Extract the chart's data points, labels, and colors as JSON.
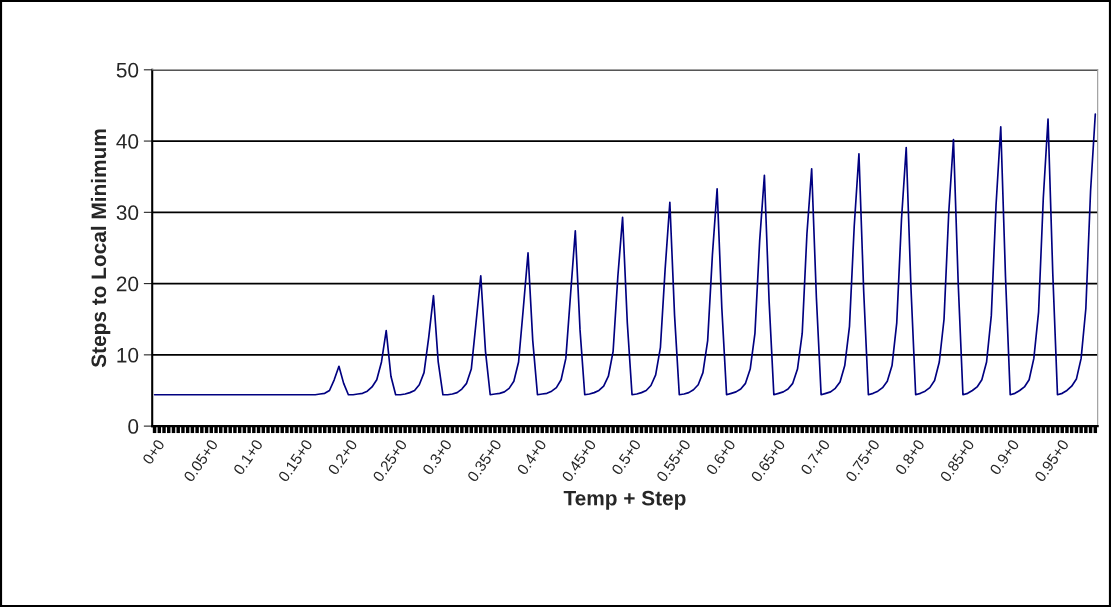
{
  "chart_data": {
    "type": "line",
    "xlabel": "Temp + Step",
    "ylabel": "Steps to Local Minimum",
    "ylim": [
      0,
      50
    ],
    "yticks": [
      0,
      10,
      20,
      30,
      40,
      50
    ],
    "grid": "y",
    "marker": "none",
    "line_style": "solid",
    "categories": [
      "0+0",
      null,
      null,
      null,
      null,
      null,
      null,
      null,
      null,
      null,
      "0.05+0",
      null,
      null,
      null,
      null,
      null,
      null,
      null,
      null,
      null,
      "0.1+0",
      null,
      null,
      null,
      null,
      null,
      null,
      null,
      null,
      null,
      "0.15+0",
      null,
      null,
      null,
      null,
      null,
      null,
      null,
      null,
      null,
      "0.2+0",
      null,
      null,
      null,
      null,
      null,
      null,
      null,
      null,
      null,
      "0.25+0",
      null,
      null,
      null,
      null,
      null,
      null,
      null,
      null,
      null,
      "0.3+0",
      null,
      null,
      null,
      null,
      null,
      null,
      null,
      null,
      null,
      "0.35+0",
      null,
      null,
      null,
      null,
      null,
      null,
      null,
      null,
      null,
      "0.4+0",
      null,
      null,
      null,
      null,
      null,
      null,
      null,
      null,
      null,
      "0.45+0",
      null,
      null,
      null,
      null,
      null,
      null,
      null,
      null,
      null,
      "0.5+0",
      null,
      null,
      null,
      null,
      null,
      null,
      null,
      null,
      null,
      "0.55+0",
      null,
      null,
      null,
      null,
      null,
      null,
      null,
      null,
      null,
      "0.6+0",
      null,
      null,
      null,
      null,
      null,
      null,
      null,
      null,
      null,
      "0.65+0",
      null,
      null,
      null,
      null,
      null,
      null,
      null,
      null,
      null,
      "0.7+0",
      null,
      null,
      null,
      null,
      null,
      null,
      null,
      null,
      null,
      "0.75+0",
      null,
      null,
      null,
      null,
      null,
      null,
      null,
      null,
      null,
      "0.8+0",
      null,
      null,
      null,
      null,
      null,
      null,
      null,
      null,
      null,
      "0.85+0",
      null,
      null,
      null,
      null,
      null,
      null,
      null,
      null,
      null,
      "0.9+0",
      null,
      null,
      null,
      null,
      null,
      null,
      null,
      null,
      null,
      "0.95+0",
      null,
      null,
      null,
      null,
      null,
      null,
      null,
      null,
      null
    ],
    "series": [
      {
        "color": "#000080",
        "values": [
          4.4,
          4.4,
          4.4,
          4.4,
          4.4,
          4.4,
          4.4,
          4.4,
          4.4,
          4.4,
          4.4,
          4.4,
          4.4,
          4.4,
          4.4,
          4.4,
          4.4,
          4.4,
          4.4,
          4.4,
          4.4,
          4.4,
          4.4,
          4.4,
          4.4,
          4.4,
          4.4,
          4.4,
          4.4,
          4.4,
          4.4,
          4.4,
          4.4,
          4.4,
          4.4,
          4.5,
          4.6,
          5,
          6.5,
          8.4,
          6,
          4.4,
          4.4,
          4.5,
          4.6,
          4.9,
          5.5,
          6.5,
          9,
          13.4,
          7,
          4.4,
          4.4,
          4.5,
          4.7,
          5,
          5.8,
          7.5,
          12.5,
          18.3,
          9,
          4.4,
          4.4,
          4.5,
          4.7,
          5.2,
          6,
          8,
          14.5,
          21.1,
          10.5,
          4.4,
          4.5,
          4.6,
          4.8,
          5.3,
          6.3,
          9,
          16.5,
          24.3,
          12,
          4.4,
          4.5,
          4.6,
          4.9,
          5.4,
          6.5,
          9.5,
          18.5,
          27.4,
          13.5,
          4.4,
          4.5,
          4.7,
          5,
          5.6,
          7,
          10.5,
          21,
          29.3,
          14.5,
          4.4,
          4.5,
          4.7,
          5,
          5.7,
          7.2,
          11,
          22,
          31.4,
          15.5,
          4.4,
          4.5,
          4.7,
          5.1,
          5.8,
          7.5,
          12,
          24,
          33.3,
          16.5,
          4.4,
          4.6,
          4.8,
          5.2,
          6,
          8,
          13,
          26,
          35.2,
          17.5,
          4.4,
          4.6,
          4.8,
          5.2,
          6,
          8,
          13,
          27,
          36.1,
          18,
          4.4,
          4.6,
          4.8,
          5.3,
          6.2,
          8.5,
          14,
          28,
          38.2,
          19,
          4.4,
          4.6,
          4.9,
          5.4,
          6.3,
          8.5,
          14.5,
          29,
          39.1,
          19.5,
          4.4,
          4.6,
          4.9,
          5.4,
          6.4,
          9,
          15,
          30,
          40.2,
          20,
          4.4,
          4.6,
          5,
          5.5,
          6.5,
          9,
          15.5,
          31,
          42,
          21,
          4.4,
          4.6,
          5,
          5.5,
          6.5,
          9.5,
          16,
          32,
          43.1,
          21.5,
          4.4,
          4.6,
          5,
          5.6,
          6.6,
          9.5,
          16.5,
          33,
          43.8
        ]
      }
    ]
  }
}
